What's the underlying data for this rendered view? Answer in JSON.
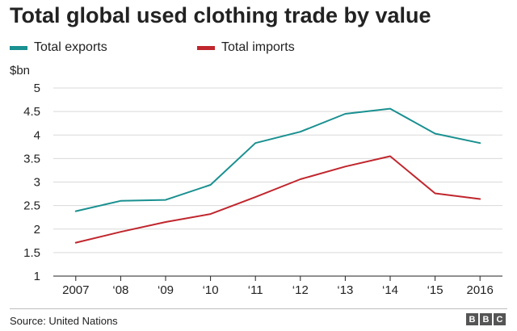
{
  "chart_data": {
    "type": "line",
    "title": "Total global used clothing trade by value",
    "ylabel": "$bn",
    "xlabel": "",
    "categories": [
      "2007",
      "‘08",
      "‘09",
      "‘10",
      "‘11",
      "‘12",
      "‘13",
      "‘14",
      "‘15",
      "2016"
    ],
    "ylim": [
      1,
      5
    ],
    "yticks": [
      "1",
      "1.5",
      "2",
      "2.5",
      "3",
      "3.5",
      "4",
      "4.5",
      "5"
    ],
    "grid": true,
    "legend_position": "top-left",
    "series": [
      {
        "name": "Total exports",
        "color": "#1a9090",
        "values": [
          2.38,
          2.6,
          2.62,
          2.94,
          3.83,
          4.07,
          4.45,
          4.56,
          4.03,
          3.83
        ]
      },
      {
        "name": "Total imports",
        "color": "#c0262d",
        "values": [
          1.71,
          1.94,
          2.15,
          2.32,
          2.68,
          3.06,
          3.33,
          3.55,
          2.76,
          2.64
        ]
      }
    ]
  },
  "footer": {
    "source": "Source: United Nations",
    "logo_letters": [
      "B",
      "B",
      "C"
    ]
  }
}
